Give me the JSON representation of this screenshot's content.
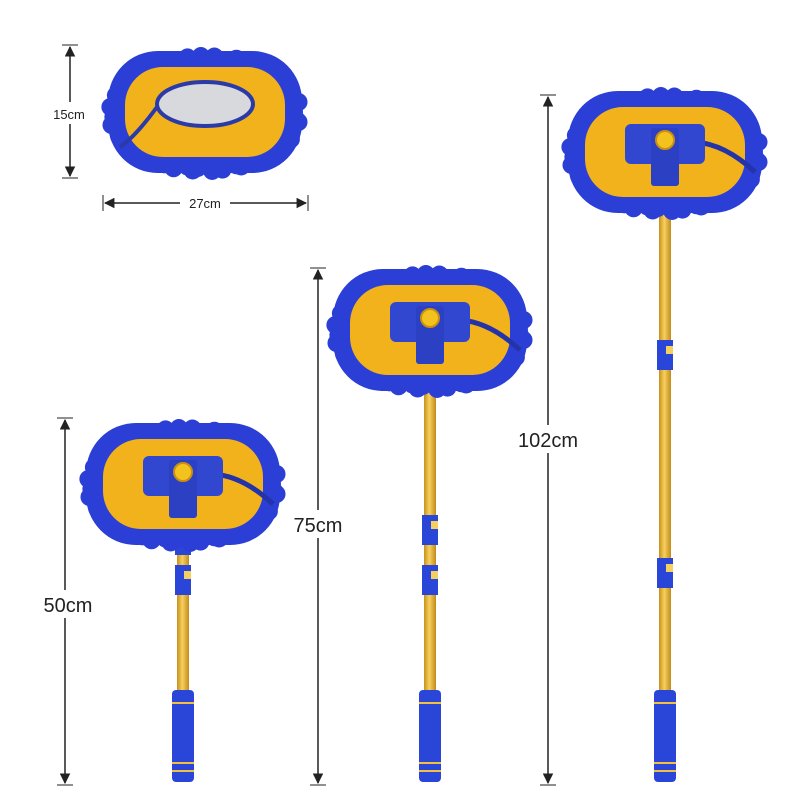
{
  "dimensions": {
    "head_height": "15cm",
    "head_width": "27cm",
    "short_length": "50cm",
    "medium_length": "75cm",
    "long_length": "102cm"
  },
  "colors": {
    "chenille_blue": "#2b3fd6",
    "pad_yellow": "#f2b21c",
    "pole_gold": "#e8b830",
    "handle_blue": "#2a46d8"
  }
}
